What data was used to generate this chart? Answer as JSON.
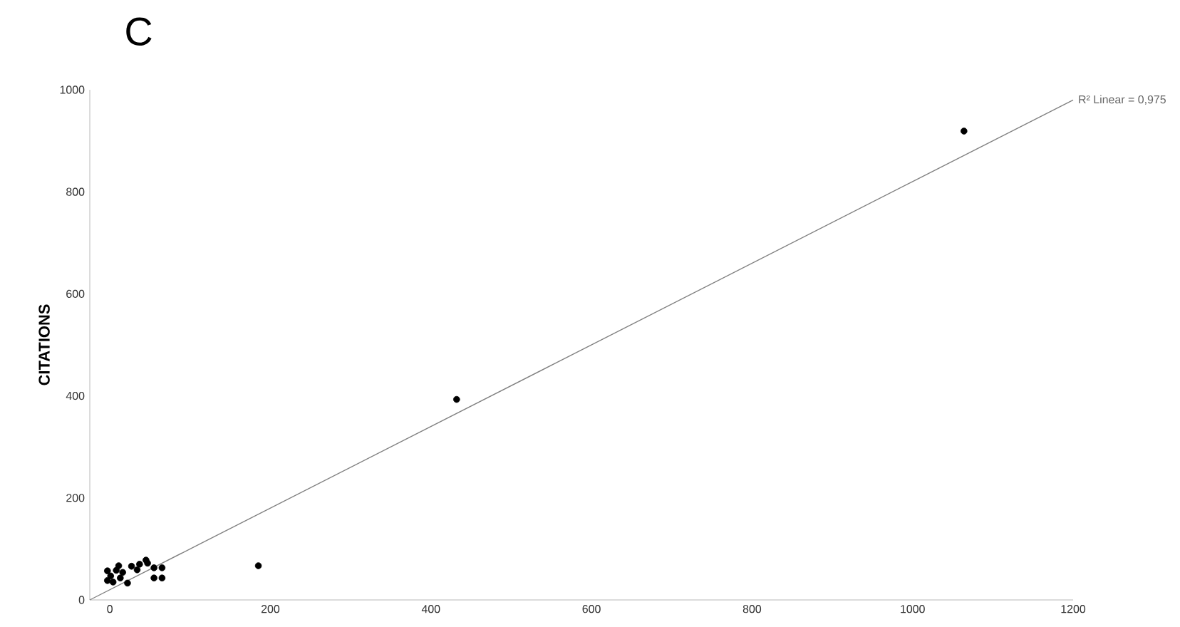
{
  "chart_data": {
    "type": "scatter",
    "title": "C",
    "ylabel": "CITATIONS",
    "xlim": [
      -25,
      1200
    ],
    "ylim": [
      0,
      1000
    ],
    "xticks": [
      0,
      200,
      400,
      600,
      800,
      1000,
      1200
    ],
    "yticks": [
      0,
      200,
      400,
      600,
      800,
      1000
    ],
    "grid": false,
    "series": [
      {
        "type": "scatter",
        "marker": "circle",
        "color": "#000000",
        "x": [
          11,
          8,
          -3,
          1,
          16,
          -3,
          4,
          13,
          22,
          27,
          34,
          37,
          45,
          47,
          55,
          65,
          55,
          65,
          185,
          432,
          1064
        ],
        "values": [
          67,
          58,
          57,
          47,
          54,
          38,
          35,
          43,
          33,
          66,
          59,
          70,
          78,
          72,
          63,
          63,
          43,
          43,
          67,
          393,
          919
        ]
      },
      {
        "type": "line",
        "marker": "none",
        "color": "#808080",
        "x": [
          -25,
          1200
        ],
        "values": [
          0,
          980
        ]
      }
    ],
    "annotations": [
      {
        "text": "R² Linear = 0,975",
        "x": 1200,
        "y": 980
      }
    ]
  }
}
